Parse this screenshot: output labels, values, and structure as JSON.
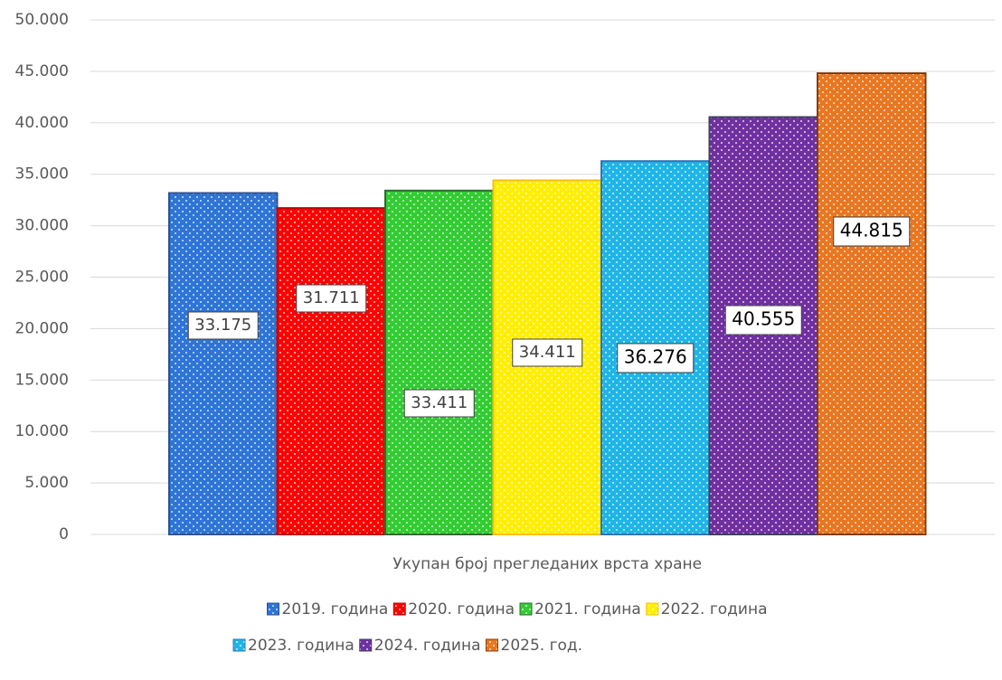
{
  "chart_data": {
    "type": "bar",
    "categories": [
      "Укупан број прегледаних врста хране"
    ],
    "series": [
      {
        "name": "2019. година",
        "color": "#2e75d6",
        "values": [
          33175
        ],
        "value_labels": [
          "33.175"
        ]
      },
      {
        "name": "2020. година",
        "color": "#ff0000",
        "values": [
          31711
        ],
        "value_labels": [
          "31.711"
        ]
      },
      {
        "name": "2021. година",
        "color": "#33cc33",
        "values": [
          33411
        ],
        "value_labels": [
          "33.411"
        ]
      },
      {
        "name": "2022. година",
        "color": "#ffee00",
        "values": [
          34411
        ],
        "value_labels": [
          "34.411"
        ]
      },
      {
        "name": "2023. година",
        "color": "#1fb5e6",
        "values": [
          36276
        ],
        "value_labels": [
          "36.276"
        ]
      },
      {
        "name": "2024. година",
        "color": "#7030a0",
        "values": [
          40555
        ],
        "value_labels": [
          "40.555"
        ]
      },
      {
        "name": "2025. год.",
        "color": "#e87722",
        "values": [
          44815
        ],
        "value_labels": [
          "44.815"
        ]
      }
    ],
    "ylim": [
      0,
      50000
    ],
    "yticks": [
      0,
      {
        "value": 5000,
        "label": "5.000"
      },
      {
        "value": 10000,
        "label": "10.000"
      },
      {
        "value": 15000,
        "label": "15.000"
      },
      {
        "value": 20000,
        "label": "20.000"
      },
      {
        "value": 25000,
        "label": "25.000"
      },
      {
        "value": 30000,
        "label": "30.000"
      },
      {
        "value": 35000,
        "label": "35.000"
      },
      {
        "value": 40000,
        "label": "40.000"
      },
      {
        "value": 45000,
        "label": "45.000"
      },
      {
        "value": 50000,
        "label": "50.000"
      }
    ],
    "grid": true,
    "legend": "bottom"
  }
}
